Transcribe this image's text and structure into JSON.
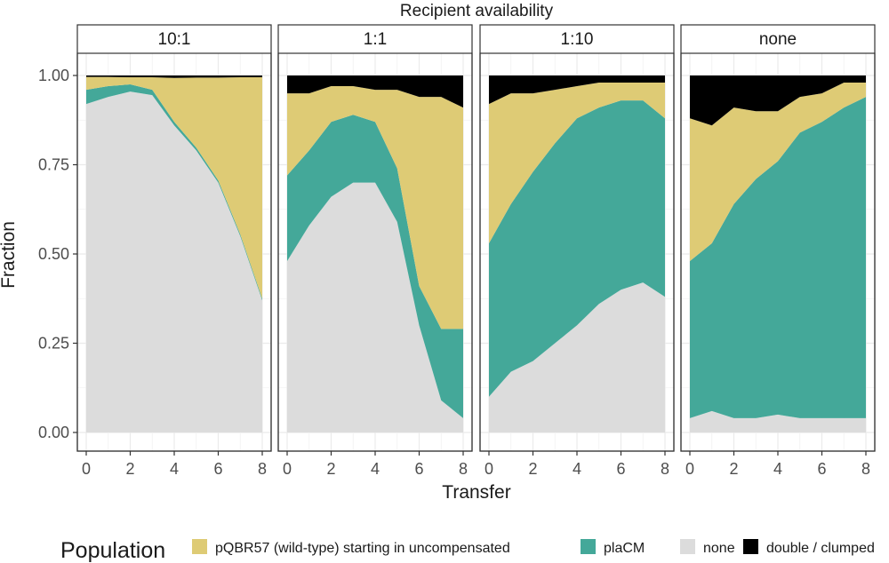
{
  "chart_data": {
    "type": "area",
    "stacked": true,
    "facet_title": "Recipient availability",
    "xlabel": "Transfer",
    "ylabel": "Fraction",
    "xlim": [
      0,
      8
    ],
    "ylim": [
      0,
      1
    ],
    "x_ticks": [
      0,
      2,
      4,
      6,
      8
    ],
    "x_tick_labels": [
      "0",
      "2",
      "4",
      "6",
      "8"
    ],
    "y_ticks": [
      0,
      0.25,
      0.5,
      0.75,
      1.0
    ],
    "y_tick_labels": [
      "0.00",
      "0.25",
      "0.50",
      "0.75",
      "1.00"
    ],
    "grid": true,
    "theme": "bw",
    "legend": {
      "title": "Population",
      "position": "bottom",
      "entries": [
        {
          "key": "pqbr57",
          "label": "pQBR57 (wild-type) starting in uncompensated",
          "color": "#DECB75"
        },
        {
          "key": "placm",
          "label": "plaCM",
          "color": "#44A899"
        },
        {
          "key": "none",
          "label": "none",
          "color": "#DCDCDC"
        },
        {
          "key": "double",
          "label": "double / clumped",
          "color": "#000000"
        }
      ]
    },
    "stack_order_bottom_to_top": [
      "none",
      "placm",
      "pqbr57",
      "double"
    ],
    "x": [
      0,
      1,
      2,
      3,
      4,
      5,
      6,
      7,
      8
    ],
    "panels": [
      {
        "title": "10:1",
        "series": {
          "none": [
            0.92,
            0.94,
            0.955,
            0.945,
            0.86,
            0.79,
            0.7,
            0.55,
            0.37
          ],
          "placm": [
            0.04,
            0.03,
            0.02,
            0.015,
            0.01,
            0.008,
            0.006,
            0.005,
            0.005
          ],
          "pqbr57": [
            0.036,
            0.026,
            0.02,
            0.035,
            0.123,
            0.196,
            0.288,
            0.44,
            0.62
          ],
          "double": [
            0.004,
            0.004,
            0.005,
            0.005,
            0.007,
            0.006,
            0.006,
            0.005,
            0.005
          ]
        }
      },
      {
        "title": "1:1",
        "series": {
          "none": [
            0.48,
            0.58,
            0.66,
            0.7,
            0.7,
            0.59,
            0.3,
            0.09,
            0.04
          ],
          "placm": [
            0.24,
            0.21,
            0.21,
            0.19,
            0.17,
            0.15,
            0.11,
            0.2,
            0.25
          ],
          "pqbr57": [
            0.23,
            0.16,
            0.1,
            0.08,
            0.09,
            0.22,
            0.53,
            0.65,
            0.62
          ],
          "double": [
            0.05,
            0.05,
            0.03,
            0.03,
            0.04,
            0.04,
            0.06,
            0.06,
            0.09
          ]
        }
      },
      {
        "title": "1:10",
        "series": {
          "none": [
            0.1,
            0.17,
            0.2,
            0.25,
            0.3,
            0.36,
            0.4,
            0.42,
            0.38
          ],
          "placm": [
            0.43,
            0.47,
            0.53,
            0.56,
            0.58,
            0.55,
            0.53,
            0.51,
            0.5
          ],
          "pqbr57": [
            0.39,
            0.31,
            0.22,
            0.15,
            0.09,
            0.07,
            0.05,
            0.05,
            0.1
          ],
          "double": [
            0.08,
            0.05,
            0.05,
            0.04,
            0.03,
            0.02,
            0.02,
            0.02,
            0.02
          ]
        }
      },
      {
        "title": "none",
        "series": {
          "none": [
            0.04,
            0.06,
            0.04,
            0.04,
            0.05,
            0.04,
            0.04,
            0.04,
            0.04
          ],
          "placm": [
            0.44,
            0.47,
            0.6,
            0.67,
            0.71,
            0.8,
            0.83,
            0.87,
            0.9
          ],
          "pqbr57": [
            0.4,
            0.33,
            0.27,
            0.19,
            0.14,
            0.1,
            0.08,
            0.07,
            0.04
          ],
          "double": [
            0.12,
            0.14,
            0.09,
            0.1,
            0.1,
            0.06,
            0.05,
            0.02,
            0.02
          ]
        }
      }
    ]
  }
}
